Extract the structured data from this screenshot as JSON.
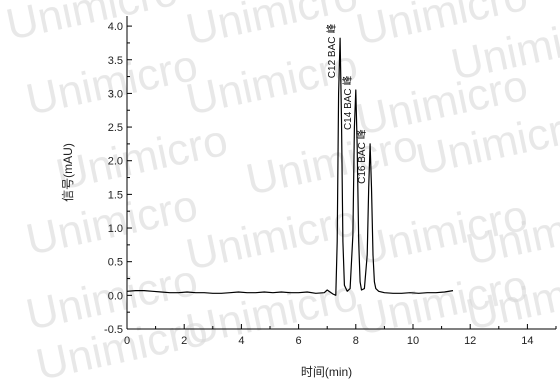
{
  "watermark": {
    "text": "Unimicro"
  },
  "chart_data": {
    "type": "line",
    "title": "",
    "xlabel": "时间(min)",
    "ylabel": "信号(mAU)",
    "xlim": [
      0,
      15
    ],
    "ylim": [
      -0.5,
      4.15
    ],
    "x_ticks": [
      0,
      2,
      4,
      6,
      8,
      10,
      12,
      14
    ],
    "y_ticks": [
      -0.5,
      0.0,
      0.5,
      1.0,
      1.5,
      2.0,
      2.5,
      3.0,
      3.5,
      4.0
    ],
    "x_tick_labels": [
      "0",
      "2",
      "4",
      "6",
      "8",
      "10",
      "12",
      "14"
    ],
    "y_tick_labels": [
      "-0.5",
      "0.0",
      "0.5",
      "1.0",
      "1.5",
      "2.0",
      "2.5",
      "3.0",
      "3.5",
      "4.0"
    ],
    "grid": false,
    "line_color": "#000000",
    "series": [
      {
        "x": [
          0.0,
          0.3,
          0.6,
          0.9,
          1.2,
          1.5,
          1.8,
          2.1,
          2.4,
          2.7,
          3.0,
          3.3,
          3.6,
          3.9,
          4.2,
          4.5,
          4.8,
          5.1,
          5.4,
          5.7,
          6.0,
          6.3,
          6.6,
          6.9,
          7.0,
          7.2,
          7.3,
          7.35,
          7.4,
          7.45,
          7.5,
          7.55,
          7.6,
          7.7,
          7.8,
          7.9,
          7.95,
          8.0,
          8.05,
          8.1,
          8.15,
          8.2,
          8.3,
          8.4,
          8.45,
          8.5,
          8.55,
          8.6,
          8.65,
          8.7,
          8.8,
          9.0,
          9.3,
          9.6,
          9.9,
          10.2,
          10.5,
          10.8,
          11.1,
          11.4
        ],
        "y": [
          0.06,
          0.07,
          0.07,
          0.06,
          0.05,
          0.04,
          0.04,
          0.05,
          0.04,
          0.04,
          0.03,
          0.03,
          0.04,
          0.05,
          0.04,
          0.04,
          0.05,
          0.04,
          0.05,
          0.04,
          0.04,
          0.05,
          0.03,
          0.04,
          0.08,
          0.02,
          0.0,
          0.8,
          3.0,
          3.82,
          2.6,
          0.8,
          0.15,
          0.06,
          0.1,
          0.9,
          2.5,
          3.05,
          2.2,
          0.8,
          0.2,
          0.08,
          0.1,
          0.6,
          1.6,
          2.25,
          1.6,
          0.6,
          0.2,
          0.1,
          0.06,
          0.04,
          0.03,
          0.03,
          0.04,
          0.03,
          0.04,
          0.04,
          0.05,
          0.07
        ]
      }
    ],
    "peak_labels": [
      {
        "text": "C12 BAC 峰",
        "x": 7.45,
        "y": 3.82
      },
      {
        "text": "C14 BAC 峰",
        "x": 8.0,
        "y": 3.05
      },
      {
        "text": "C16 BAC 峰",
        "x": 8.5,
        "y": 2.25
      }
    ]
  }
}
